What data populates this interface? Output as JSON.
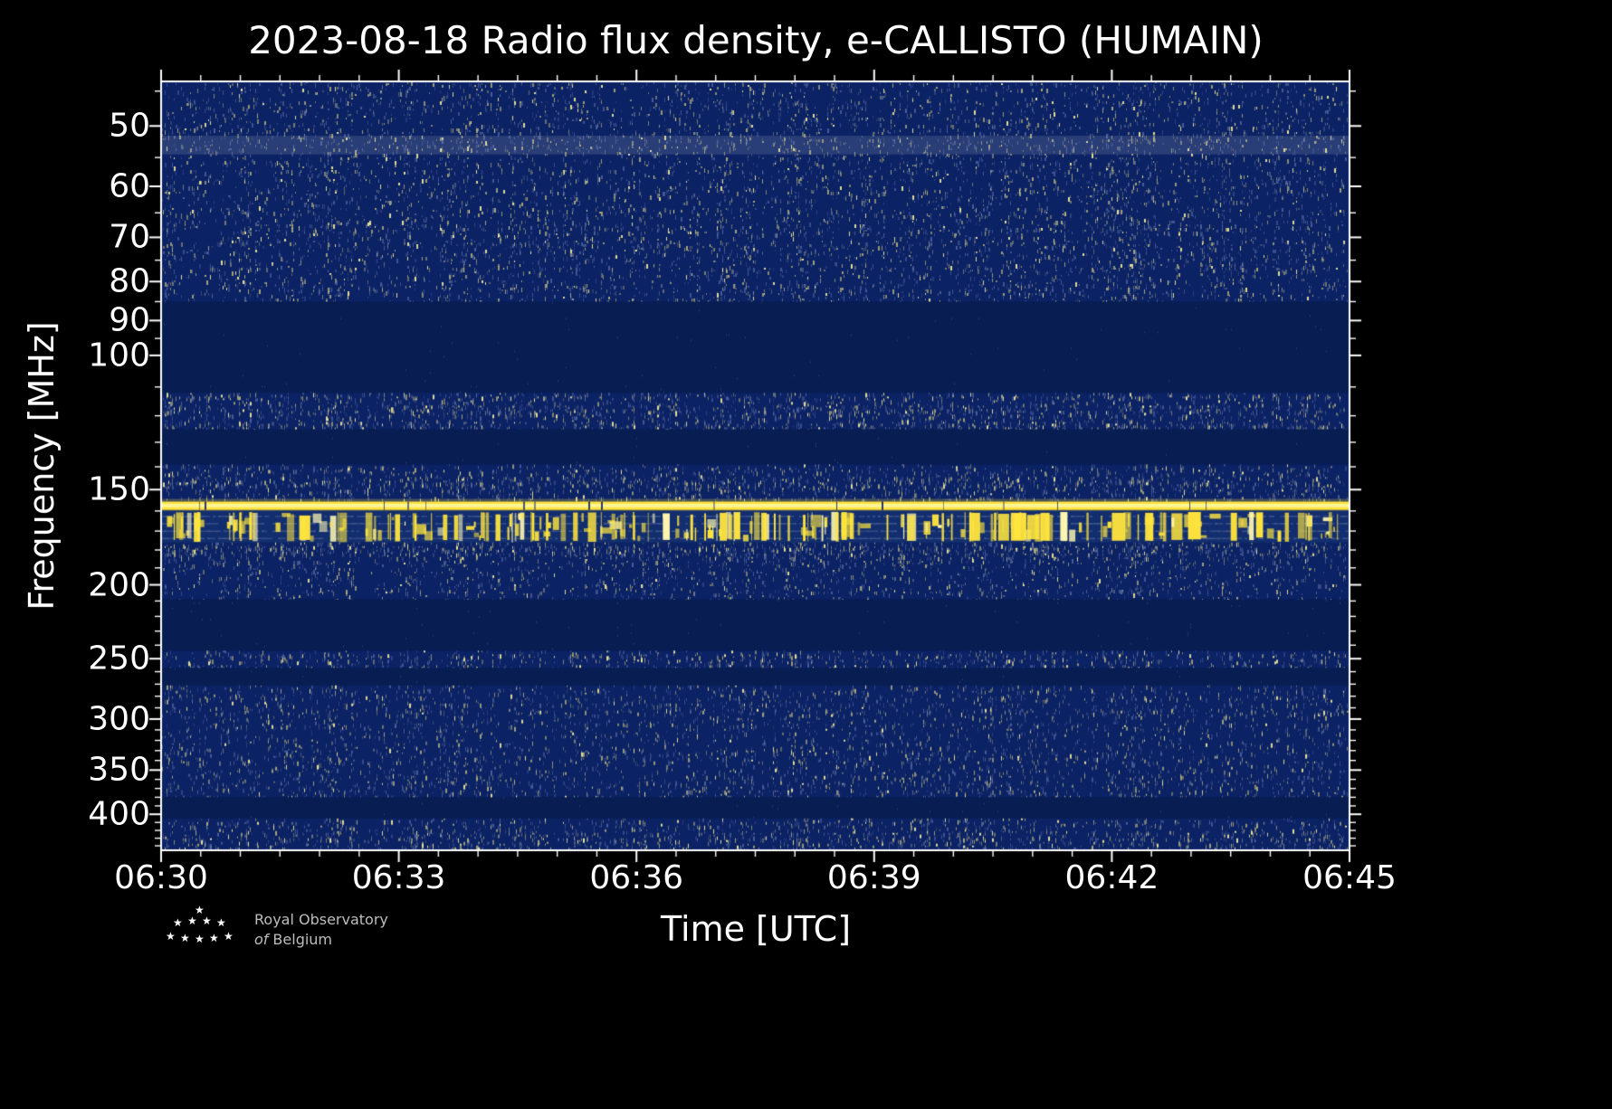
{
  "chart_data": {
    "type": "heatmap",
    "title": "2023-08-18 Radio flux density, e-CALLISTO (HUMAIN)",
    "date": "2023-08-18",
    "instrument": "e-CALLISTO",
    "station": "HUMAIN",
    "xlabel": "Time [UTC]",
    "ylabel": "Frequency [MHz]",
    "x_axis": {
      "start": "06:30",
      "end": "06:45",
      "major_ticks": [
        "06:30",
        "06:33",
        "06:36",
        "06:39",
        "06:42",
        "06:45"
      ],
      "minor_tick_interval_min": 0.5,
      "span_min": 15
    },
    "y_axis": {
      "scale": "log",
      "direction": "increasing-downward",
      "range_mhz": [
        43.7,
        446
      ],
      "major_ticks": [
        50,
        60,
        70,
        80,
        90,
        100,
        150,
        200,
        250,
        300,
        350,
        400
      ],
      "minor_ticks": [
        45,
        55,
        65,
        75,
        85,
        95,
        110,
        120,
        130,
        140,
        160,
        170,
        180,
        190,
        210,
        220,
        230,
        240,
        260,
        270,
        280,
        290,
        310,
        320,
        330,
        340,
        360,
        370,
        380,
        390,
        410,
        420,
        430,
        440
      ]
    },
    "colors": {
      "background": "#000000",
      "plot_base": "#0b2264",
      "quiet_band": "#081d52",
      "bursts_base": "#132e6e",
      "speckle_dim": "#6d7fb4",
      "speckle_warm": "#cfc884",
      "speckle_bright": "#f7f0a0",
      "rfi_yellow": "#ffe53d",
      "rfi_core": "#fff7b0",
      "frame": "#ffffff",
      "text": "#ffffff"
    },
    "bands": [
      {
        "f_lo": 43.7,
        "f_hi": 85,
        "kind": "speckle",
        "density": 0.3,
        "warmth": 0.55,
        "note": "broadband speckle noise 44-85 MHz"
      },
      {
        "f_lo": 51.5,
        "f_hi": 54.5,
        "kind": "faint_line",
        "alpha": 0.16,
        "note": "faint enhancement ~52 MHz"
      },
      {
        "f_lo": 85,
        "f_hi": 112,
        "kind": "quiet",
        "note": "blanked FM band"
      },
      {
        "f_lo": 112,
        "f_hi": 125,
        "kind": "speckle",
        "density": 0.48,
        "warmth": 0.78,
        "note": "airband RFI stripe"
      },
      {
        "f_lo": 125,
        "f_hi": 139,
        "kind": "quiet"
      },
      {
        "f_lo": 139,
        "f_hi": 155,
        "kind": "speckle",
        "density": 0.45,
        "warmth": 0.72
      },
      {
        "f_lo": 155.5,
        "f_hi": 159.5,
        "kind": "bright_line",
        "note": "strong continuous RFI carrier ~157 MHz"
      },
      {
        "f_lo": 160,
        "f_hi": 176,
        "kind": "bursts",
        "density": 0.5,
        "note": "intermittent strong RFI bursts 160-176 MHz"
      },
      {
        "f_lo": 176,
        "f_hi": 184,
        "kind": "speckle",
        "density": 0.6,
        "warmth": 0.8
      },
      {
        "f_lo": 184,
        "f_hi": 209,
        "kind": "speckle",
        "density": 0.28,
        "warmth": 0.35
      },
      {
        "f_lo": 209,
        "f_hi": 244,
        "kind": "quiet"
      },
      {
        "f_lo": 244,
        "f_hi": 257,
        "kind": "speckle",
        "density": 0.42,
        "warmth": 0.7
      },
      {
        "f_lo": 257,
        "f_hi": 271,
        "kind": "quiet"
      },
      {
        "f_lo": 271,
        "f_hi": 380,
        "kind": "speckle",
        "density": 0.33,
        "warmth": 0.55
      },
      {
        "f_lo": 380,
        "f_hi": 405,
        "kind": "quiet"
      },
      {
        "f_lo": 405,
        "f_hi": 446,
        "kind": "speckle",
        "density": 0.36,
        "warmth": 0.6
      }
    ]
  },
  "branding": {
    "org_line1": "Royal Observatory",
    "org_line2_prefix": "of",
    "org_line2": "Belgium"
  },
  "icons": {
    "star": "★"
  }
}
